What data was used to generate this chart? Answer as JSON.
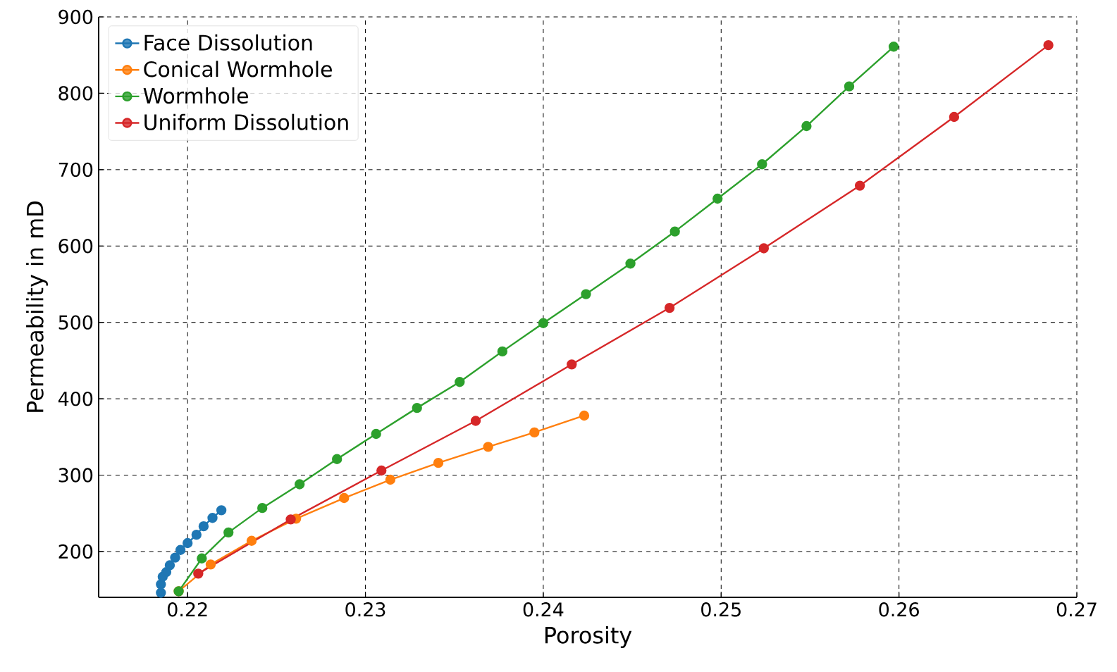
{
  "chart_data": {
    "type": "line",
    "xlabel": "Porosity",
    "ylabel": "Permeability in mD",
    "xlim": [
      0.215,
      0.27
    ],
    "ylim": [
      140,
      900
    ],
    "xticks": [
      0.22,
      0.23,
      0.24,
      0.25,
      0.26,
      0.27
    ],
    "yticks": [
      200,
      300,
      400,
      500,
      600,
      700,
      800,
      900
    ],
    "grid": true,
    "legend": "top left",
    "marker": "circle",
    "line_style": "solid",
    "series": [
      {
        "name": "Face Dissolution",
        "color": "#1f77b4",
        "x": [
          0.2185,
          0.2185,
          0.2186,
          0.2188,
          0.219,
          0.2193,
          0.2196,
          0.22,
          0.2205,
          0.2209,
          0.2214,
          0.2219
        ],
        "values": [
          146,
          157,
          167,
          173,
          182,
          192,
          202,
          211,
          222,
          233,
          244,
          254
        ]
      },
      {
        "name": "Conical Wormhole",
        "color": "#ff7f0e",
        "x": [
          0.2195,
          0.2213,
          0.2236,
          0.2261,
          0.2288,
          0.2314,
          0.2341,
          0.2369,
          0.2395,
          0.2423
        ],
        "values": [
          148,
          183,
          214,
          243,
          270,
          294,
          316,
          337,
          356,
          378
        ]
      },
      {
        "name": "Wormhole",
        "color": "#2ca02c",
        "x": [
          0.2195,
          0.2208,
          0.2223,
          0.2242,
          0.2263,
          0.2284,
          0.2306,
          0.2329,
          0.2353,
          0.2377,
          0.24,
          0.2424,
          0.2449,
          0.2474,
          0.2498,
          0.2523,
          0.2548,
          0.2572,
          0.2597
        ],
        "values": [
          148,
          191,
          225,
          257,
          288,
          321,
          354,
          388,
          422,
          462,
          499,
          537,
          577,
          619,
          662,
          707,
          757,
          809,
          861
        ]
      },
      {
        "name": "Uniform Dissolution",
        "color": "#d62728",
        "x": [
          0.2206,
          0.2258,
          0.2309,
          0.2362,
          0.2416,
          0.2471,
          0.2524,
          0.2578,
          0.2631,
          0.2684
        ],
        "values": [
          171,
          242,
          306,
          371,
          445,
          519,
          597,
          679,
          769,
          863
        ]
      }
    ]
  }
}
